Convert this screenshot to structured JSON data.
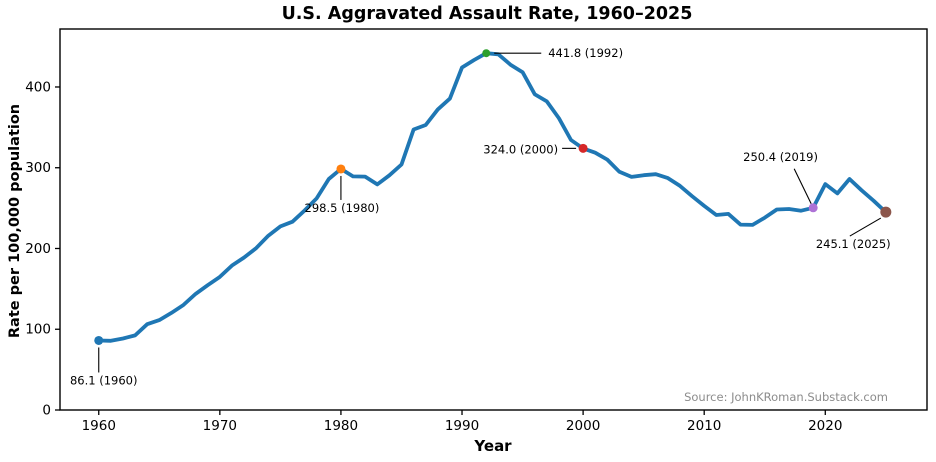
{
  "chart_data": {
    "type": "line",
    "title": "U.S. Aggravated Assault Rate, 1960–2025",
    "xlabel": "Year",
    "ylabel": "Rate per 100,000 population",
    "source": "Source: JohnKRoman.Substack.com",
    "line_color": "#1f77b4",
    "xlim": [
      1956.8,
      2028.4
    ],
    "ylim": [
      0,
      471.8
    ],
    "xticks": [
      1960,
      1970,
      1980,
      1990,
      2000,
      2010,
      2020
    ],
    "yticks": [
      0,
      100,
      200,
      300,
      400
    ],
    "grid": false,
    "legend": "none",
    "x": [
      1960,
      1961,
      1962,
      1963,
      1964,
      1965,
      1966,
      1967,
      1968,
      1969,
      1970,
      1971,
      1972,
      1973,
      1974,
      1975,
      1976,
      1977,
      1978,
      1979,
      1980,
      1981,
      1982,
      1983,
      1984,
      1985,
      1986,
      1987,
      1988,
      1989,
      1990,
      1991,
      1992,
      1993,
      1994,
      1995,
      1996,
      1997,
      1998,
      1999,
      2000,
      2001,
      2002,
      2003,
      2004,
      2005,
      2006,
      2007,
      2008,
      2009,
      2010,
      2011,
      2012,
      2013,
      2014,
      2015,
      2016,
      2017,
      2018,
      2019,
      2020,
      2021,
      2022,
      2023,
      2024,
      2025
    ],
    "values": [
      86.1,
      85.7,
      88.6,
      92.4,
      106.2,
      111.3,
      120.3,
      130.2,
      143.8,
      154.5,
      164.8,
      178.8,
      188.8,
      200.5,
      215.8,
      227.4,
      233.2,
      247.0,
      262.1,
      286.0,
      298.5,
      289.3,
      289.0,
      279.4,
      290.6,
      304.0,
      347.4,
      352.9,
      372.2,
      385.6,
      424.1,
      433.4,
      441.8,
      440.5,
      427.6,
      418.3,
      391.0,
      382.1,
      361.4,
      334.3,
      324.0,
      318.6,
      310.1,
      295.0,
      288.6,
      290.8,
      292.0,
      287.2,
      277.5,
      264.7,
      252.8,
      241.5,
      242.8,
      229.6,
      229.2,
      238.1,
      248.3,
      248.9,
      246.8,
      250.4,
      279.7,
      268.2,
      286.0,
      272.0,
      259.0,
      245.1
    ],
    "annotations": [
      {
        "year": 1960,
        "value": 86.1,
        "label": "86.1 (1960)",
        "marker_color": "#1f77b4"
      },
      {
        "year": 1980,
        "value": 298.5,
        "label": "298.5 (1980)",
        "marker_color": "#ff7f0e"
      },
      {
        "year": 1992,
        "value": 441.8,
        "label": "441.8 (1992)",
        "marker_color": "#2ca02c"
      },
      {
        "year": 2000,
        "value": 324.0,
        "label": "324.0 (2000)",
        "marker_color": "#d62728"
      },
      {
        "year": 2019,
        "value": 250.4,
        "label": "250.4 (2019)",
        "marker_color": "#ae72d6"
      },
      {
        "year": 2025,
        "value": 245.1,
        "label": "245.1 (2025)",
        "marker_color": "#8c564b"
      }
    ]
  }
}
